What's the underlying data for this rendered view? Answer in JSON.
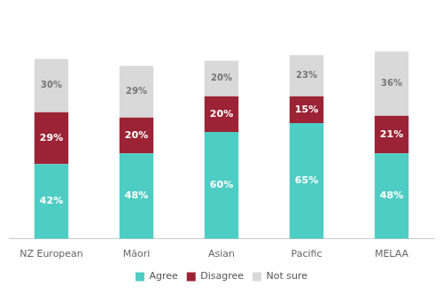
{
  "chart_data": {
    "type": "bar",
    "stacked": true,
    "categories": [
      "NZ European",
      "Māori",
      "Asian",
      "Pacific",
      "MELAA"
    ],
    "series": [
      {
        "name": "Agree",
        "color": "#4ecdc4",
        "values": [
          42,
          48,
          60,
          65,
          48
        ],
        "value_labels": [
          "42%",
          "48%",
          "60%",
          "65%",
          "48%"
        ]
      },
      {
        "name": "Disagree",
        "color": "#9b2335",
        "values": [
          29,
          20,
          20,
          15,
          21
        ],
        "value_labels": [
          "29%",
          "20%",
          "20%",
          "15%",
          "21%"
        ]
      },
      {
        "name": "Not sure",
        "color": "#d9d9d9",
        "values": [
          30,
          29,
          20,
          23,
          36
        ],
        "value_labels": [
          "30%",
          "29%",
          "20%",
          "23%",
          "36%"
        ]
      }
    ],
    "ylim": [
      0,
      130
    ],
    "grid": false,
    "legend": "bottom",
    "data_labels": true,
    "tick_labels": "x"
  }
}
